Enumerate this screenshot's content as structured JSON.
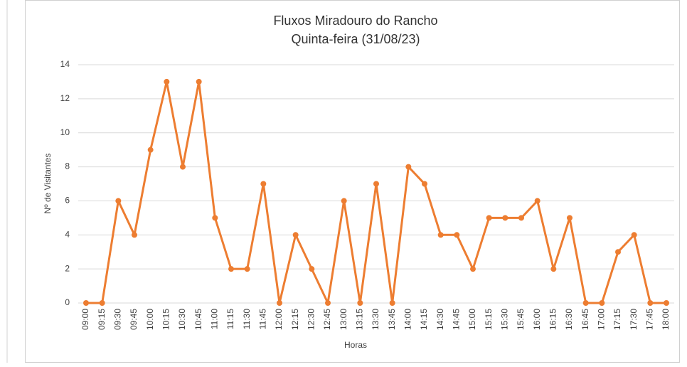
{
  "chart_data": {
    "type": "line",
    "title": "Fluxos Miradouro do Rancho",
    "subtitle": "Quinta-feira (31/08/23)",
    "x_label": "Horas",
    "y_label": "Nº de Visitantes",
    "categories": [
      "09:00",
      "09:15",
      "09:30",
      "09:45",
      "10:00",
      "10:15",
      "10:30",
      "10:45",
      "11:00",
      "11:15",
      "11:30",
      "11:45",
      "12:00",
      "12:15",
      "12:30",
      "12:45",
      "13:00",
      "13:15",
      "13:30",
      "13:45",
      "14:00",
      "14:15",
      "14:30",
      "14:45",
      "15:00",
      "15:15",
      "15:30",
      "15:45",
      "16:00",
      "16:15",
      "16:30",
      "16:45",
      "17:00",
      "17:15",
      "17:30",
      "17:45",
      "18:00"
    ],
    "values": [
      0,
      0,
      6,
      4,
      9,
      13,
      8,
      13,
      5,
      2,
      2,
      7,
      0,
      4,
      2,
      0,
      6,
      0,
      7,
      0,
      8,
      7,
      4,
      4,
      2,
      5,
      5,
      5,
      6,
      2,
      5,
      0,
      0,
      3,
      4,
      0,
      0
    ],
    "color": "#ed7d31",
    "ylim": [
      0,
      14
    ],
    "yticks": [
      0,
      2,
      4,
      6,
      8,
      10,
      12,
      14
    ],
    "grid": true
  }
}
